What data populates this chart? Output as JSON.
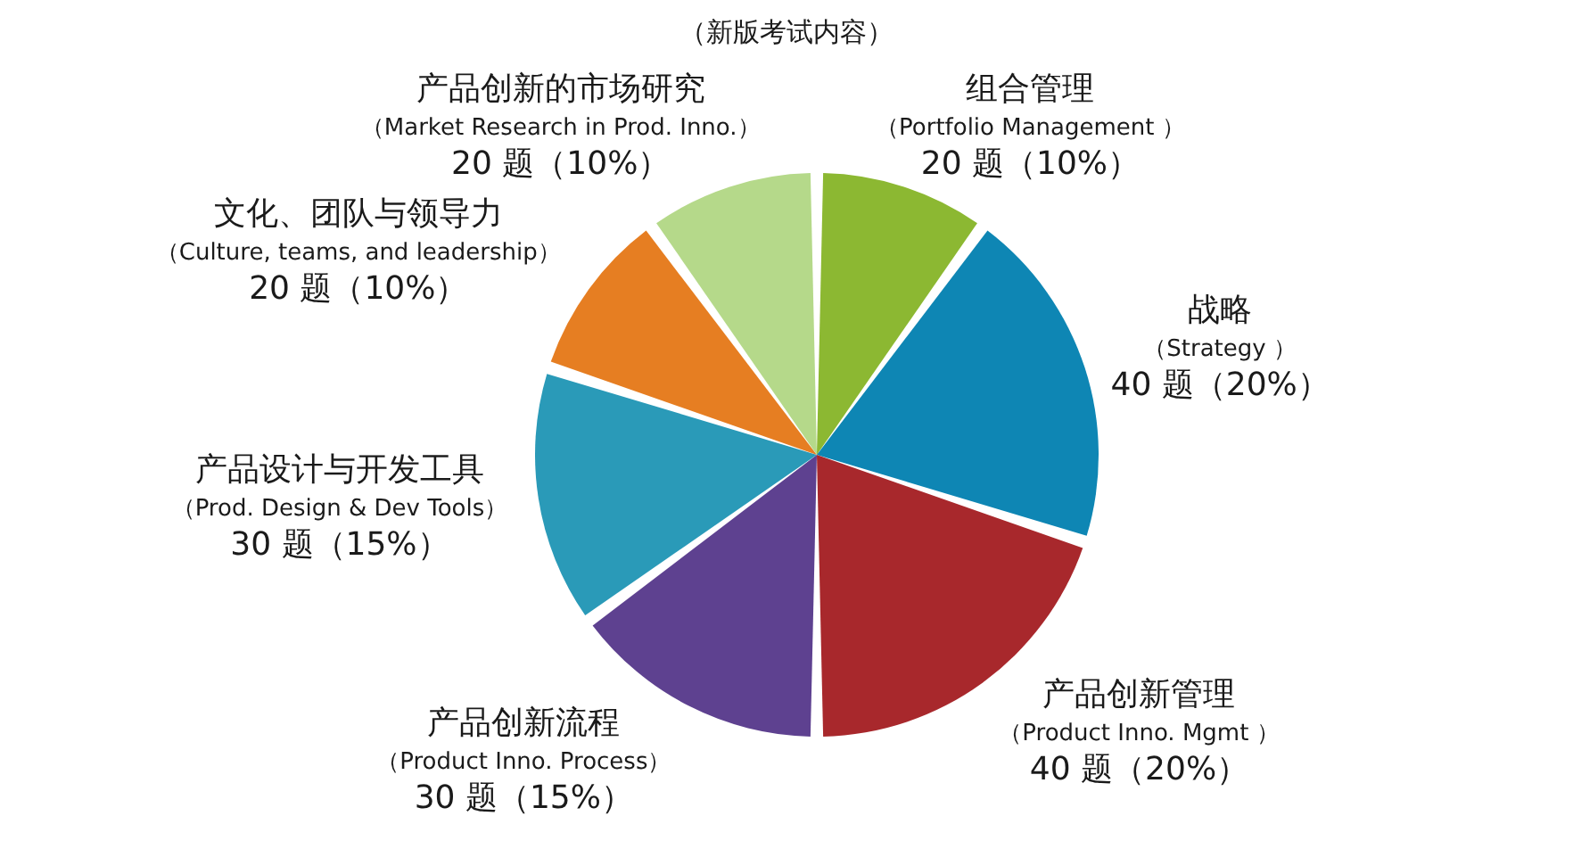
{
  "chart_data": {
    "type": "pie",
    "title": "（新版考试内容）",
    "categories": [
      "组合管理",
      "战略",
      "产品创新管理",
      "产品创新流程",
      "产品设计与开发工具",
      "文化、团队与领导力",
      "产品创新的市场研究"
    ],
    "annotations": [
      "（Portfolio Management ）",
      "（Strategy ）",
      "（Product Inno. Mgmt ）",
      "（Product Inno. Process）",
      "（Prod. Design & Dev Tools）",
      "（Culture, teams, and leadership）",
      "（Market Research in Prod. Inno.）"
    ],
    "values": [
      20,
      40,
      40,
      30,
      30,
      20,
      20
    ],
    "colors": [
      "#8cb832",
      "#0e86b4",
      "#a8282c",
      "#5e4190",
      "#2a9ab8",
      "#e67e22",
      "#b5d98a"
    ],
    "value_labels": [
      "20 题（10%）",
      "40 题（20%）",
      "40 题（20%）",
      "30 题（15%）",
      "30 题（15%）",
      "20 题（10%）",
      "20 题（10%）"
    ]
  }
}
